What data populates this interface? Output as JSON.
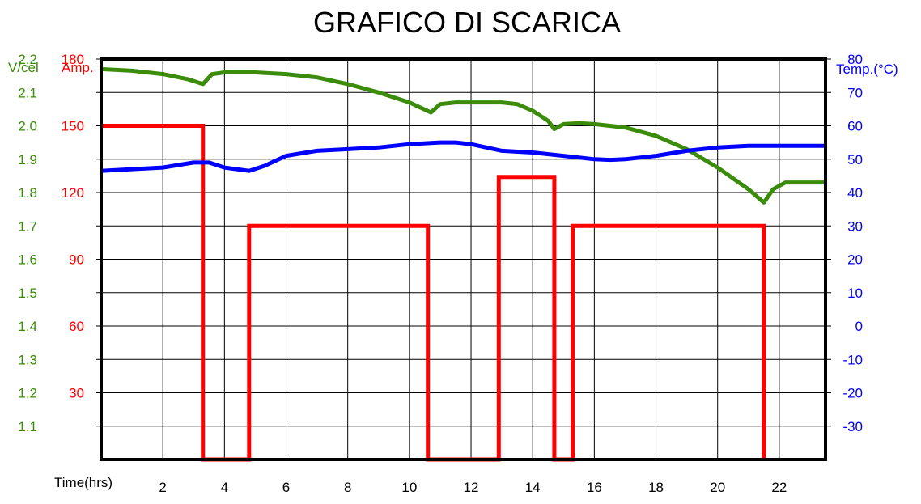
{
  "chart_data": {
    "type": "line",
    "title": "GRAFICO DI SCARICA",
    "xlabel": "Time(hrs)",
    "xlim": [
      0,
      23.5
    ],
    "x_ticks": [
      2,
      4,
      6,
      8,
      10,
      12,
      14,
      16,
      18,
      20,
      22
    ],
    "grid": true,
    "axes": {
      "voltage": {
        "label": "V/cel",
        "color": "#3a8c0a",
        "side": "left-outer",
        "ylim": [
          1.0,
          2.2
        ],
        "ticks": [
          1.1,
          1.2,
          1.3,
          1.4,
          1.5,
          1.6,
          1.7,
          1.8,
          1.9,
          2.0,
          2.1,
          2.2
        ]
      },
      "current": {
        "label": "Amp.",
        "color": "#ff0000",
        "side": "left-inner",
        "ylim": [
          0,
          180
        ],
        "ticks": [
          30,
          60,
          90,
          120,
          150,
          180
        ]
      },
      "temperature": {
        "label": "Temp.(°C)",
        "color": "#0000ff",
        "side": "right",
        "ylim": [
          -40,
          80
        ],
        "ticks": [
          -30,
          -20,
          -10,
          0,
          10,
          20,
          30,
          40,
          50,
          60,
          70,
          80
        ]
      }
    },
    "series": [
      {
        "name": "Voltage",
        "axis": "voltage",
        "color": "#3a8c0a",
        "x": [
          0,
          1,
          2,
          2.8,
          3.3,
          3.6,
          4,
          5,
          6,
          7,
          8,
          9,
          10,
          10.7,
          11,
          11.5,
          12,
          13,
          13.5,
          14,
          14.5,
          14.7,
          15,
          15.5,
          16,
          17,
          18,
          19,
          20,
          21,
          21.5,
          21.8,
          22.2,
          23.5
        ],
        "values": [
          2.17,
          2.165,
          2.155,
          2.14,
          2.125,
          2.155,
          2.16,
          2.16,
          2.155,
          2.145,
          2.125,
          2.1,
          2.07,
          2.04,
          2.065,
          2.07,
          2.07,
          2.07,
          2.065,
          2.045,
          2.015,
          1.99,
          2.005,
          2.008,
          2.005,
          1.995,
          1.97,
          1.93,
          1.875,
          1.81,
          1.77,
          1.81,
          1.83,
          1.83
        ]
      },
      {
        "name": "Current",
        "axis": "current",
        "color": "#ff0000",
        "step": true,
        "x": [
          0,
          3.3,
          3.3,
          4.8,
          4.8,
          10.6,
          10.6,
          12.9,
          12.9,
          14.7,
          14.7,
          15.3,
          15.3,
          21.5,
          21.5
        ],
        "values": [
          150,
          150,
          0,
          0,
          105,
          105,
          0,
          0,
          127,
          127,
          0,
          0,
          105,
          105,
          0
        ]
      },
      {
        "name": "Temperature",
        "axis": "temperature",
        "color": "#0000ff",
        "x": [
          0,
          1,
          2,
          3,
          3.5,
          4,
          4.8,
          5.3,
          6,
          7,
          8,
          9,
          10,
          11,
          11.5,
          12,
          13,
          14,
          15,
          16,
          16.5,
          17,
          18,
          19,
          20,
          21,
          22,
          23.5
        ],
        "values": [
          46.5,
          47,
          47.5,
          49,
          49,
          47.5,
          46.5,
          48,
          51,
          52.5,
          53,
          53.5,
          54.5,
          55,
          55,
          54.5,
          52.5,
          52,
          51,
          50,
          49.8,
          50,
          51,
          52.5,
          53.5,
          54,
          54,
          54
        ]
      }
    ]
  }
}
